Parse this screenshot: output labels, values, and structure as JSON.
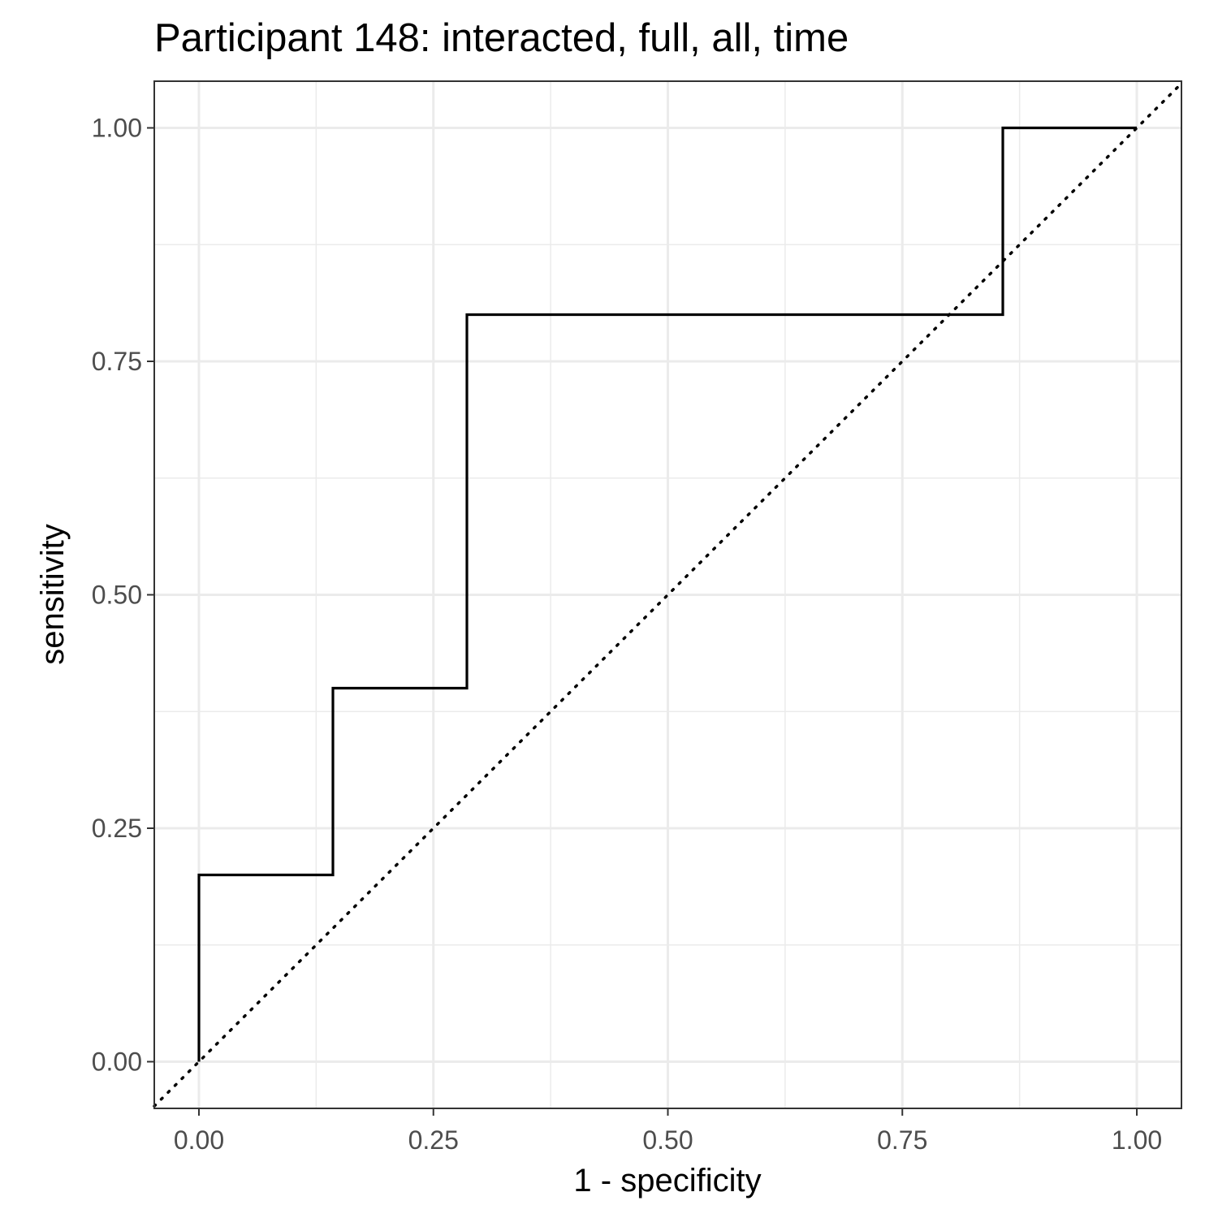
{
  "chart_data": {
    "type": "line",
    "title": "Participant 148: interacted, full, all, time",
    "xlabel": "1 - specificity",
    "ylabel": "sensitivity",
    "xlim": [
      -0.0476,
      1.0476
    ],
    "ylim": [
      -0.05,
      1.05
    ],
    "x_ticks": [
      0.0,
      0.25,
      0.5,
      0.75,
      1.0
    ],
    "x_tick_labels": [
      "0.00",
      "0.25",
      "0.50",
      "0.75",
      "1.00"
    ],
    "y_ticks": [
      0.0,
      0.25,
      0.5,
      0.75,
      1.0
    ],
    "y_tick_labels": [
      "0.00",
      "0.25",
      "0.50",
      "0.75",
      "1.00"
    ],
    "grid": true,
    "series": [
      {
        "style": "step",
        "color": "#000000",
        "x": [
          0.0,
          0.0,
          0.1429,
          0.1429,
          0.2857,
          0.2857,
          0.8571,
          0.8571,
          1.0
        ],
        "y": [
          0.0,
          0.2,
          0.2,
          0.4,
          0.4,
          0.8,
          0.8,
          1.0,
          1.0
        ]
      }
    ],
    "reference_line": {
      "style": "dotted",
      "color": "#000000",
      "slope": 1,
      "intercept": 0
    }
  }
}
